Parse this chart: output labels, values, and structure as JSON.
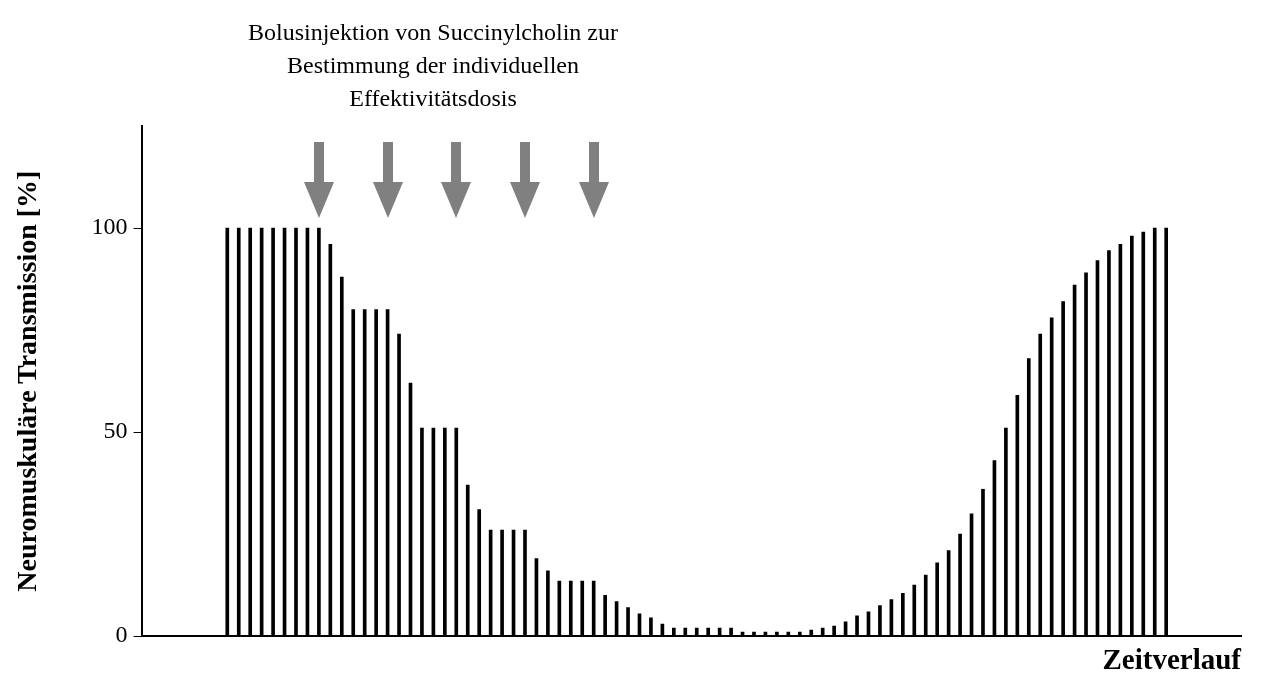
{
  "chart_data": {
    "type": "bar",
    "annotations": [
      "Bolusinjektion von Succinylcholin zur Bestimmung der individuellen Effektivitätsdosis"
    ],
    "xlabel": "Zeitverlauf",
    "ylabel": "Neuromuskuläre Transmission [%]",
    "categories": [
      null,
      null,
      null,
      null,
      null,
      null,
      null,
      null,
      null,
      null,
      null,
      null,
      null,
      null,
      null,
      null,
      null,
      null,
      null,
      null,
      null,
      null,
      null,
      null,
      null,
      null,
      null,
      null,
      null,
      null,
      null,
      null,
      null,
      null,
      null,
      null,
      null,
      null,
      null,
      null,
      null,
      null,
      null,
      null,
      null,
      null,
      null,
      null,
      null,
      null,
      null,
      null,
      null,
      null,
      null,
      null,
      null,
      null,
      null,
      null,
      null,
      null,
      null,
      null,
      null,
      null,
      null,
      null,
      null,
      null,
      null,
      null,
      null,
      null,
      null,
      null,
      null,
      null,
      null,
      null,
      null,
      null,
      null
    ],
    "values": [
      100,
      100,
      100,
      100,
      100,
      100,
      100,
      100,
      100,
      96,
      88,
      80,
      80,
      80,
      80,
      74,
      62,
      51,
      51,
      51,
      51,
      37,
      31,
      26,
      26,
      26,
      26,
      19,
      16,
      13.5,
      13.5,
      13.5,
      13.5,
      10,
      8.5,
      7,
      5.5,
      4.5,
      3,
      2,
      2,
      2,
      2,
      2,
      2,
      1,
      1,
      1,
      1,
      1,
      1,
      1.5,
      2,
      2.5,
      3.5,
      5,
      6,
      7.5,
      9,
      10.5,
      12.5,
      15,
      18,
      21,
      25,
      30,
      36,
      43,
      51,
      59,
      68,
      74,
      78,
      82,
      86,
      89,
      92,
      94.5,
      96,
      98,
      99,
      100,
      100
    ],
    "color": "#000000",
    "ylim": [
      0,
      125
    ],
    "yticks": [
      0,
      50,
      100
    ]
  }
}
